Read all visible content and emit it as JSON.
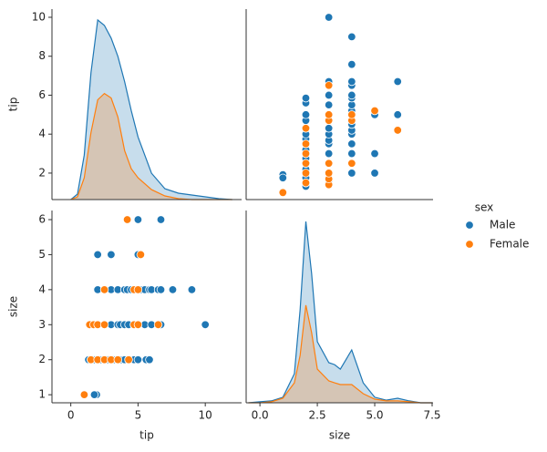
{
  "chart_data": [
    {
      "type": "density",
      "ylabel": "tip",
      "xlim": [
        -1.4,
        12.7
      ],
      "ylim": [
        0.64,
        10.42
      ],
      "yticks": [
        2,
        4,
        6,
        8,
        10
      ],
      "y2lim": [
        0,
        0.21
      ],
      "series": [
        {
          "name": "Male",
          "color": "#1f77b4",
          "axis": "y2",
          "x": [
            0,
            0.5,
            1,
            1.5,
            2,
            2.5,
            3,
            3.5,
            4,
            4.5,
            5,
            6,
            7,
            8,
            9,
            10,
            11,
            12
          ],
          "values": [
            0,
            0.006,
            0.049,
            0.14,
            0.198,
            0.192,
            0.178,
            0.158,
            0.13,
            0.098,
            0.069,
            0.029,
            0.012,
            0.007,
            0.005,
            0.003,
            0.001,
            0
          ]
        },
        {
          "name": "Female",
          "color": "#ff7f0e",
          "axis": "y2",
          "x": [
            0,
            0.5,
            1,
            1.5,
            2,
            2.5,
            3,
            3.5,
            4,
            4.5,
            5,
            6,
            7,
            8,
            9,
            10,
            11,
            12
          ],
          "values": [
            0,
            0.003,
            0.024,
            0.074,
            0.11,
            0.117,
            0.112,
            0.091,
            0.054,
            0.034,
            0.024,
            0.011,
            0.004,
            0.001,
            0,
            0,
            0,
            0
          ]
        }
      ]
    },
    {
      "type": "scatter",
      "legend": "right",
      "legend_title": "sex",
      "xlim": [
        -0.6,
        7.54
      ],
      "ylim": [
        0.64,
        10.42
      ],
      "series": [
        {
          "name": "Male",
          "color": "#1f77b4",
          "x": [
            1,
            1,
            2,
            2,
            2,
            2,
            2,
            2,
            2,
            2,
            2,
            2,
            2,
            2,
            2,
            2,
            2,
            2,
            2,
            3,
            3,
            3,
            3,
            3,
            3,
            3,
            3,
            3,
            3,
            3,
            3,
            3,
            3,
            4,
            4,
            4,
            4,
            4,
            4,
            4,
            4,
            4,
            4,
            4,
            4,
            4,
            4,
            4,
            4,
            4,
            5,
            5,
            5,
            6,
            6
          ],
          "values": [
            1.92,
            1.75,
            1.32,
            1.5,
            1.75,
            2,
            2.2,
            2.5,
            2.75,
            3,
            3.2,
            3.5,
            3.75,
            4,
            4.3,
            4.7,
            5,
            5.6,
            5.85,
            1.5,
            2,
            2.5,
            3,
            3.5,
            3.68,
            4,
            4.3,
            4.7,
            5,
            5.5,
            6,
            6.7,
            10,
            2,
            2.5,
            3,
            3.5,
            4,
            4.2,
            4.5,
            4.7,
            5,
            5.2,
            5.5,
            5.85,
            6,
            6.5,
            6.7,
            7.58,
            9,
            2,
            3,
            5,
            5,
            6.7
          ]
        },
        {
          "name": "Female",
          "color": "#ff7f0e",
          "x": [
            1,
            2,
            2,
            2,
            2,
            2,
            2,
            3,
            3,
            3,
            3,
            3,
            3,
            3,
            4,
            4,
            4,
            5,
            6
          ],
          "values": [
            1,
            1.5,
            2,
            2.5,
            3,
            3.5,
            4.3,
            1.4,
            1.7,
            2,
            2.5,
            4.7,
            5,
            6.5,
            2.5,
            4.7,
            5,
            5.2,
            4.2
          ]
        }
      ]
    },
    {
      "type": "scatter",
      "xlabel": "tip",
      "ylabel": "size",
      "xlim": [
        -1.4,
        12.7
      ],
      "ylim": [
        0.77,
        6.26
      ],
      "xticks": [
        0,
        5,
        10
      ],
      "yticks": [
        1,
        2,
        3,
        4,
        5,
        6
      ],
      "series": [
        {
          "name": "Male",
          "color": "#1f77b4",
          "x": [
            1.92,
            1.75,
            1.32,
            1.5,
            1.75,
            2,
            2.2,
            2.5,
            2.75,
            3,
            3.2,
            3.5,
            3.75,
            4,
            4.3,
            4.7,
            5,
            5.6,
            5.85,
            1.5,
            2,
            2.5,
            3,
            3.5,
            3.68,
            4,
            4.3,
            4.7,
            5,
            5.5,
            6,
            6.7,
            10,
            2,
            2.5,
            3,
            3.5,
            4,
            4.2,
            4.5,
            4.7,
            5,
            5.2,
            5.5,
            5.85,
            6,
            6.5,
            6.7,
            7.58,
            9,
            2,
            3,
            5,
            5,
            6.7
          ],
          "values": [
            1,
            1,
            2,
            2,
            2,
            2,
            2,
            2,
            2,
            2,
            2,
            2,
            2,
            2,
            2,
            2,
            2,
            2,
            2,
            3,
            3,
            3,
            3,
            3,
            3,
            3,
            3,
            3,
            3,
            3,
            3,
            3,
            3,
            4,
            4,
            4,
            4,
            4,
            4,
            4,
            4,
            4,
            4,
            4,
            4,
            4,
            4,
            4,
            4,
            4,
            5,
            5,
            5,
            6,
            6
          ]
        },
        {
          "name": "Female",
          "color": "#ff7f0e",
          "x": [
            1,
            1.5,
            2,
            2.5,
            3,
            3.5,
            4.3,
            1.4,
            1.7,
            2,
            2.5,
            4.7,
            5,
            6.5,
            2.5,
            4.7,
            5,
            5.2,
            4.2
          ],
          "values": [
            1,
            2,
            2,
            2,
            2,
            2,
            2,
            3,
            3,
            3,
            3,
            3,
            3,
            3,
            4,
            4,
            4,
            5,
            6
          ]
        }
      ]
    },
    {
      "type": "density",
      "xlabel": "size",
      "xlim": [
        -0.6,
        7.54
      ],
      "xticks": [
        {
          "value": 0,
          "label": "0.0"
        },
        2.5,
        {
          "value": 5,
          "label": "5.0"
        },
        7.5
      ],
      "y2lim": [
        0,
        0.8
      ],
      "series": [
        {
          "name": "Male",
          "color": "#1f77b4",
          "axis": "y2",
          "x": [
            -0.5,
            0,
            0.5,
            1,
            1.5,
            1.75,
            2,
            2.25,
            2.5,
            3,
            3.25,
            3.5,
            4,
            4.5,
            5,
            5.5,
            6,
            6.5,
            7,
            7.5
          ],
          "values": [
            0,
            0.004,
            0.008,
            0.023,
            0.121,
            0.387,
            0.754,
            0.538,
            0.254,
            0.167,
            0.159,
            0.14,
            0.22,
            0.083,
            0.023,
            0.011,
            0.019,
            0.008,
            0,
            0
          ]
        },
        {
          "name": "Female",
          "color": "#ff7f0e",
          "axis": "y2",
          "x": [
            -0.5,
            0,
            0.5,
            1,
            1.5,
            1.75,
            2,
            2.25,
            2.5,
            3,
            3.25,
            3.5,
            4,
            4.5,
            5,
            5.5,
            6,
            6.5,
            7,
            7.5
          ],
          "values": [
            0,
            0,
            0.004,
            0.019,
            0.083,
            0.197,
            0.406,
            0.292,
            0.14,
            0.091,
            0.083,
            0.076,
            0.076,
            0.038,
            0.015,
            0.008,
            0.008,
            0.004,
            0,
            0
          ]
        }
      ]
    }
  ]
}
